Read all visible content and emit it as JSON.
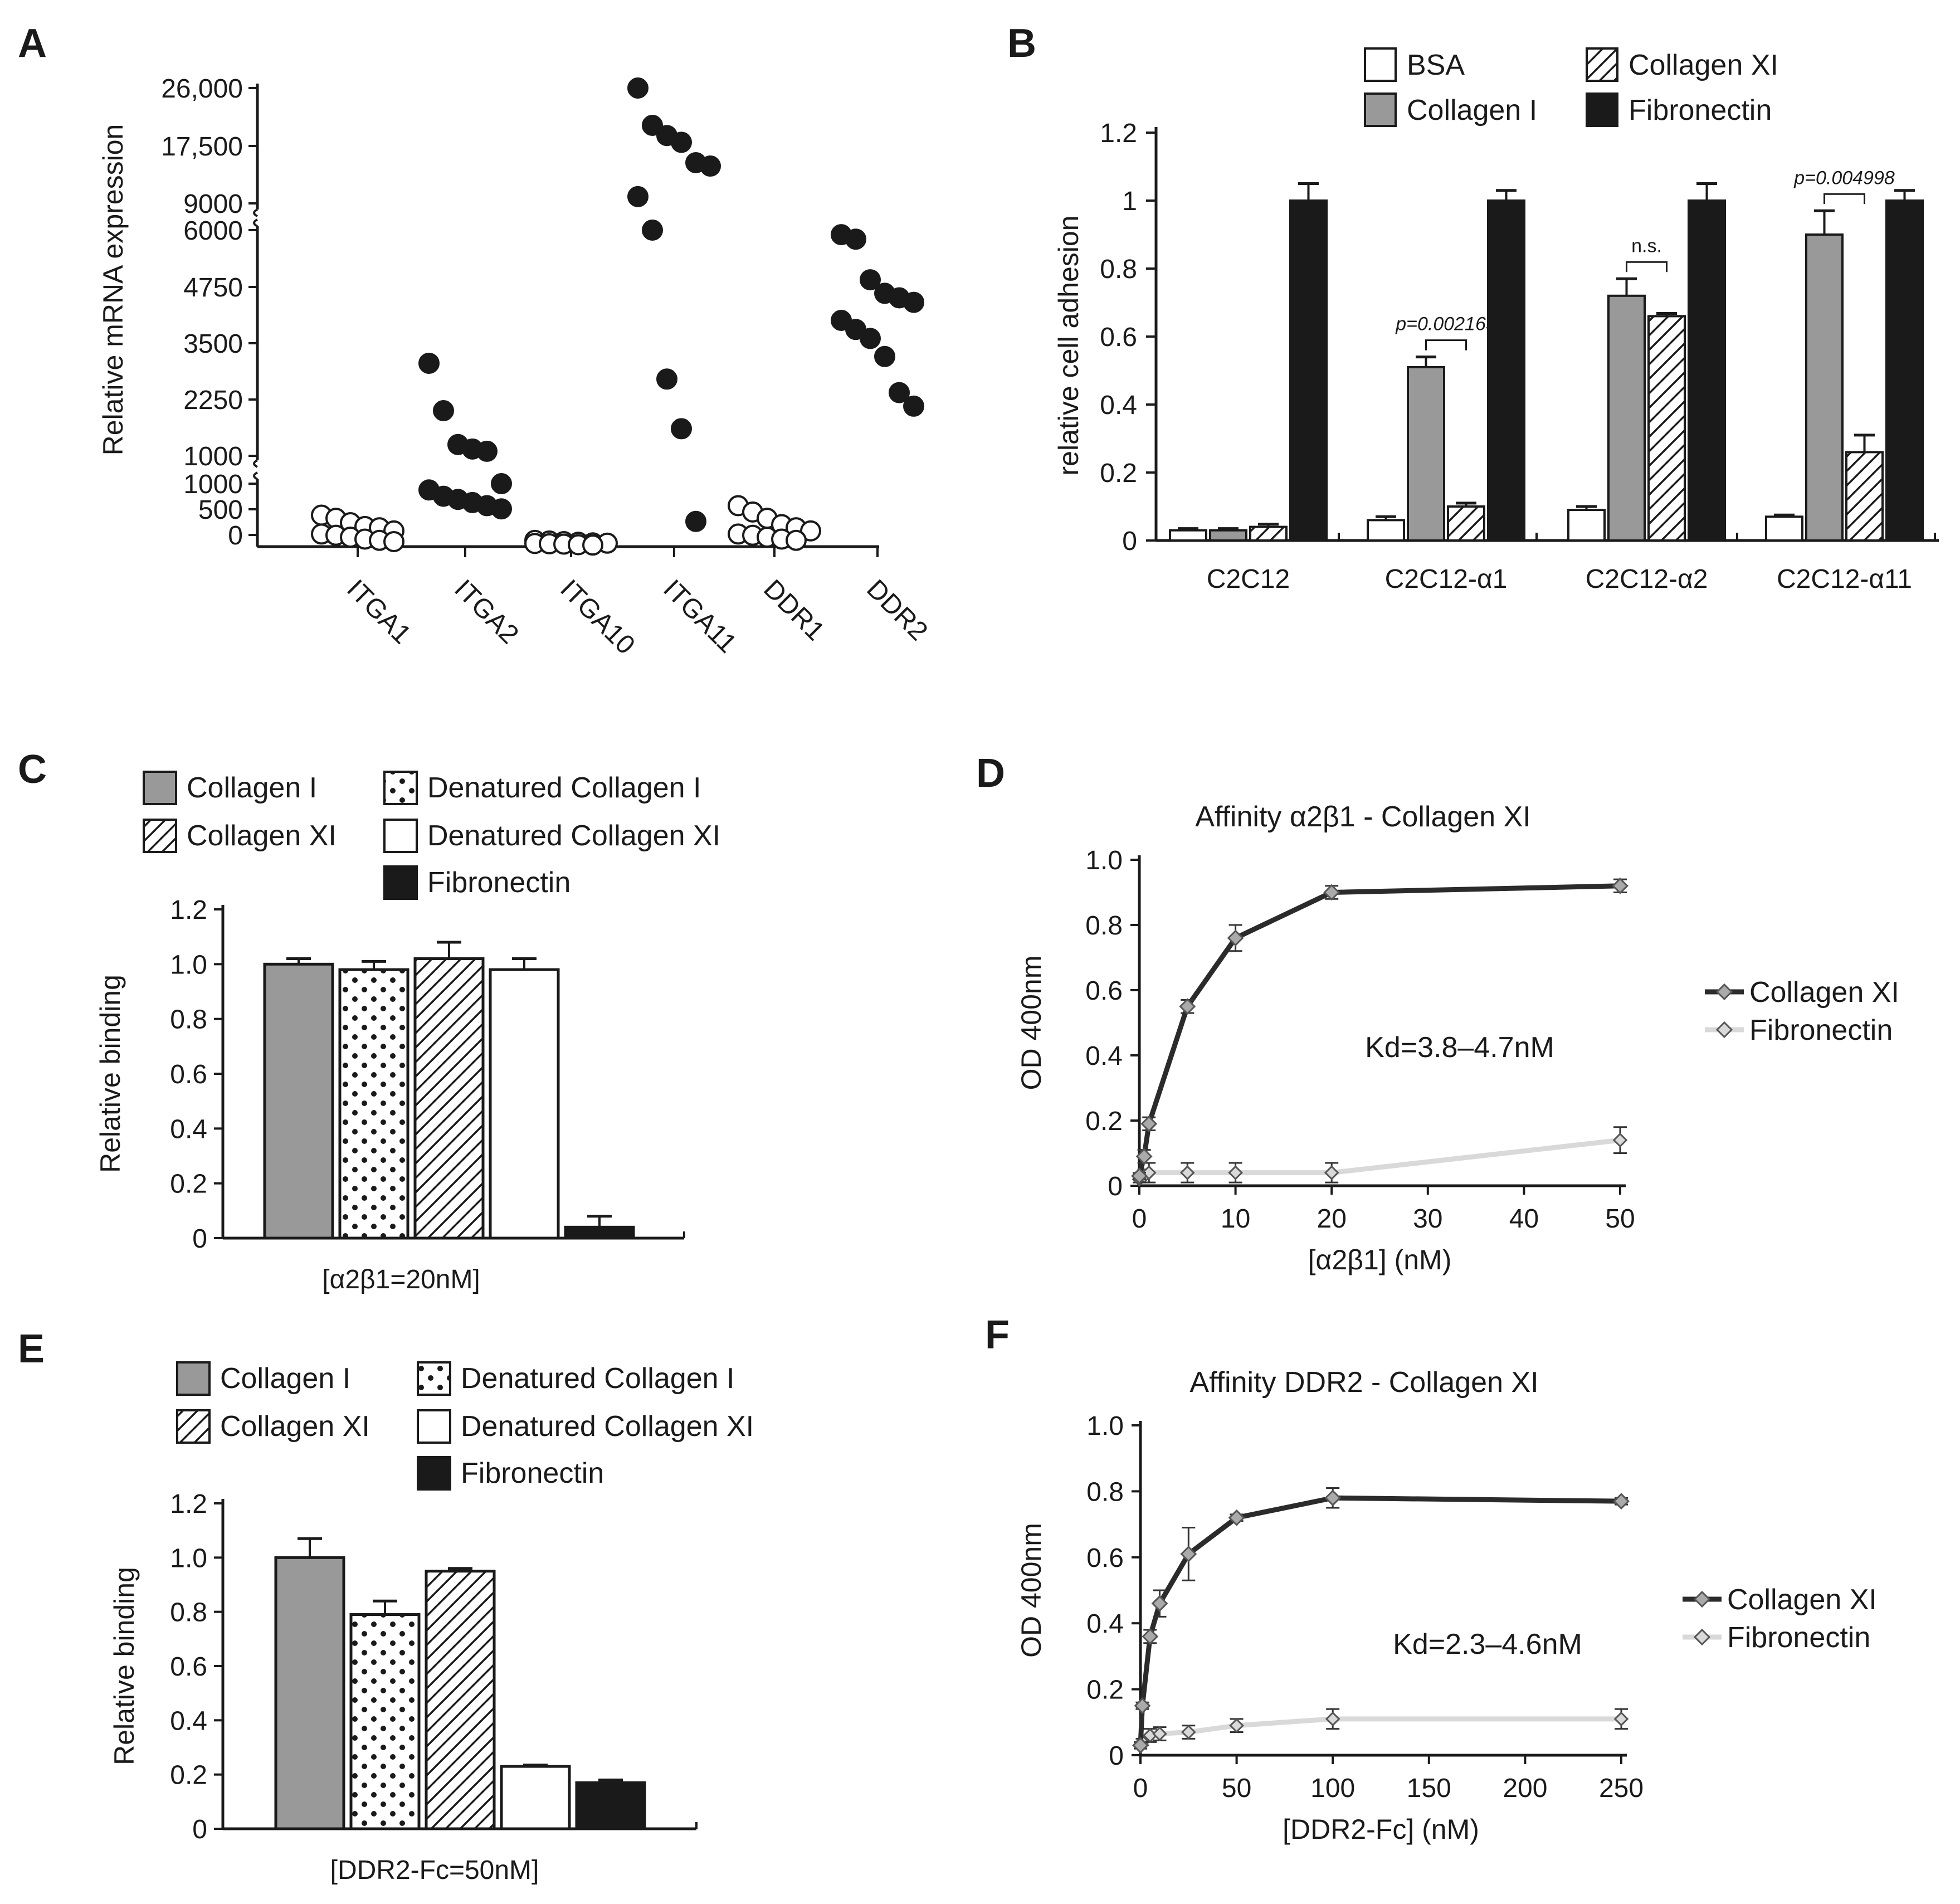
{
  "colors": {
    "gray": "#999999",
    "black": "#1a1a1a",
    "white": "#ffffff",
    "darkLine": "#2b2b2b",
    "lightLine": "#d9d9d9",
    "marker": "#aaaaaa"
  },
  "chart_data": [
    {
      "panel": "A",
      "type": "scatter",
      "ylabel": "Relative mRNA expression",
      "yticks": [
        "26,000",
        "17,500",
        "9000",
        "6000",
        "4750",
        "3500",
        "2250",
        "1000",
        "1000",
        "500",
        "0"
      ],
      "categories": [
        "ITGA1",
        "ITGA2",
        "ITGA10",
        "ITGA11",
        "DDR1",
        "DDR2"
      ],
      "filled": [
        false,
        true,
        false,
        true,
        false,
        true
      ],
      "points": [
        [
          500,
          450,
          380,
          320,
          300,
          250,
          200,
          180,
          150,
          120,
          100,
          80
        ],
        [
          3050,
          2000,
          1250,
          1150,
          1100,
          1000,
          900,
          800,
          750,
          700,
          650,
          600
        ],
        [
          100,
          90,
          80,
          70,
          60,
          55,
          50,
          45,
          40,
          30,
          25
        ],
        [
          26000,
          20500,
          19000,
          18000,
          15000,
          14500,
          10000,
          6000,
          2700,
          1600,
          400
        ],
        [
          650,
          550,
          450,
          350,
          300,
          250,
          200,
          180,
          150,
          120,
          100
        ],
        [
          5900,
          5800,
          4900,
          4600,
          4500,
          4400,
          4000,
          3800,
          3600,
          3200,
          2400,
          2100
        ]
      ]
    },
    {
      "panel": "B",
      "type": "bar",
      "ylabel": "relative cell adhesion",
      "ylim": [
        0,
        1.2
      ],
      "yticks": [
        "1.2",
        "1",
        "0.8",
        "0.6",
        "0.4",
        "0.2",
        "0"
      ],
      "categories": [
        "C2C12",
        "C2C12-α1",
        "C2C12-α2",
        "C2C12-α11"
      ],
      "series": [
        {
          "name": "BSA",
          "fill": "white",
          "values": [
            0.03,
            0.06,
            0.09,
            0.07
          ],
          "errors": [
            0.005,
            0.01,
            0.01,
            0.005
          ]
        },
        {
          "name": "Collagen I",
          "fill": "gray",
          "values": [
            0.03,
            0.51,
            0.72,
            0.9
          ],
          "errors": [
            0.005,
            0.03,
            0.05,
            0.07
          ]
        },
        {
          "name": "Collagen XI",
          "fill": "hatch",
          "values": [
            0.04,
            0.1,
            0.66,
            0.26
          ],
          "errors": [
            0.008,
            0.01,
            0.008,
            0.05
          ]
        },
        {
          "name": "Fibronectin",
          "fill": "black",
          "values": [
            1.0,
            1.0,
            1.0,
            1.0
          ],
          "errors": [
            0.05,
            0.03,
            0.05,
            0.03
          ]
        }
      ],
      "annotations": [
        {
          "text": "p=0.002165",
          "group": 1
        },
        {
          "text": "n.s.",
          "group": 2
        },
        {
          "text": "p=0.004998",
          "group": 3
        }
      ]
    },
    {
      "panel": "C",
      "type": "bar",
      "ylabel": "Relative binding",
      "xlabel": "[α2β1=20nM]",
      "ylim": [
        0,
        1.2
      ],
      "yticks": [
        "1.2",
        "1.0",
        "0.8",
        "0.6",
        "0.4",
        "0.2",
        "0"
      ],
      "legend": [
        {
          "name": "Collagen I",
          "fill": "gray"
        },
        {
          "name": "Collagen XI",
          "fill": "hatch"
        },
        {
          "name": "Denatured Collagen I",
          "fill": "dots"
        },
        {
          "name": "Denatured Collagen XI",
          "fill": "white"
        },
        {
          "name": "Fibronectin",
          "fill": "black"
        }
      ],
      "bars": [
        {
          "name": "Collagen I",
          "fill": "gray",
          "value": 1.0,
          "error": 0.02
        },
        {
          "name": "Denatured Collagen I",
          "fill": "dots",
          "value": 0.98,
          "error": 0.03
        },
        {
          "name": "Collagen XI",
          "fill": "hatch",
          "value": 1.02,
          "error": 0.06
        },
        {
          "name": "Denatured Collagen XI",
          "fill": "white",
          "value": 0.98,
          "error": 0.04
        },
        {
          "name": "Fibronectin",
          "fill": "black",
          "value": 0.04,
          "error": 0.04
        }
      ]
    },
    {
      "panel": "D",
      "type": "line",
      "title": "Affinity α2β1 - Collagen XI",
      "ylabel": "OD 400nm",
      "xlabel": "[α2β1] (nM)",
      "xlim": [
        0,
        50
      ],
      "ylim": [
        0,
        1.0
      ],
      "xticks": [
        "0",
        "10",
        "20",
        "30",
        "40",
        "50"
      ],
      "yticks": [
        "1.0",
        "0.8",
        "0.6",
        "0.4",
        "0.2",
        "0"
      ],
      "annotation": "Kd=3.8–4.7nM",
      "series": [
        {
          "name": "Collagen XI",
          "x": [
            0,
            0.5,
            1,
            5,
            10,
            20,
            50
          ],
          "y": [
            0.03,
            0.09,
            0.19,
            0.55,
            0.76,
            0.9,
            0.92
          ],
          "errors": [
            0.01,
            0.02,
            0.02,
            0.02,
            0.04,
            0.02,
            0.02
          ]
        },
        {
          "name": "Fibronectin",
          "x": [
            0,
            0.5,
            1,
            5,
            10,
            20,
            50
          ],
          "y": [
            0.02,
            0.03,
            0.04,
            0.04,
            0.04,
            0.04,
            0.14
          ],
          "errors": [
            0.01,
            0.02,
            0.03,
            0.03,
            0.03,
            0.03,
            0.04
          ]
        }
      ]
    },
    {
      "panel": "E",
      "type": "bar",
      "ylabel": "Relative binding",
      "xlabel": "[DDR2-Fc=50nM]",
      "ylim": [
        0,
        1.2
      ],
      "yticks": [
        "1.2",
        "1.0",
        "0.8",
        "0.6",
        "0.4",
        "0.2",
        "0"
      ],
      "legend": [
        {
          "name": "Collagen I",
          "fill": "gray"
        },
        {
          "name": "Collagen XI",
          "fill": "hatch"
        },
        {
          "name": "Denatured Collagen I",
          "fill": "dots"
        },
        {
          "name": "Denatured Collagen XI",
          "fill": "white"
        },
        {
          "name": "Fibronectin",
          "fill": "black"
        }
      ],
      "bars": [
        {
          "name": "Collagen I",
          "fill": "gray",
          "value": 1.0,
          "error": 0.07
        },
        {
          "name": "Denatured Collagen I",
          "fill": "dots",
          "value": 0.79,
          "error": 0.05
        },
        {
          "name": "Collagen XI",
          "fill": "hatch",
          "value": 0.95,
          "error": 0.01
        },
        {
          "name": "Denatured Collagen XI",
          "fill": "white",
          "value": 0.23,
          "error": 0.005
        },
        {
          "name": "Fibronectin",
          "fill": "black",
          "value": 0.17,
          "error": 0.01
        }
      ]
    },
    {
      "panel": "F",
      "type": "line",
      "title": "Affinity DDR2 - Collagen XI",
      "ylabel": "OD 400nm",
      "xlabel": "[DDR2-Fc] (nM)",
      "xlim": [
        0,
        250
      ],
      "ylim": [
        0,
        1.0
      ],
      "xticks": [
        "0",
        "50",
        "100",
        "150",
        "200",
        "250"
      ],
      "yticks": [
        "1.0",
        "0.8",
        "0.6",
        "0.4",
        "0.2",
        "0"
      ],
      "annotation": "Kd=2.3–4.6nM",
      "series": [
        {
          "name": "Collagen XI",
          "x": [
            0,
            1,
            5,
            10,
            25,
            50,
            100,
            250
          ],
          "y": [
            0.03,
            0.15,
            0.36,
            0.46,
            0.61,
            0.72,
            0.78,
            0.77
          ],
          "errors": [
            0.01,
            0.01,
            0.02,
            0.04,
            0.08,
            0.01,
            0.03,
            0.01
          ]
        },
        {
          "name": "Fibronectin",
          "x": [
            0,
            1,
            5,
            10,
            25,
            50,
            100,
            250
          ],
          "y": [
            0.03,
            0.04,
            0.06,
            0.065,
            0.07,
            0.09,
            0.11,
            0.11
          ],
          "errors": [
            0.01,
            0.01,
            0.02,
            0.02,
            0.02,
            0.02,
            0.03,
            0.03
          ]
        }
      ]
    }
  ]
}
